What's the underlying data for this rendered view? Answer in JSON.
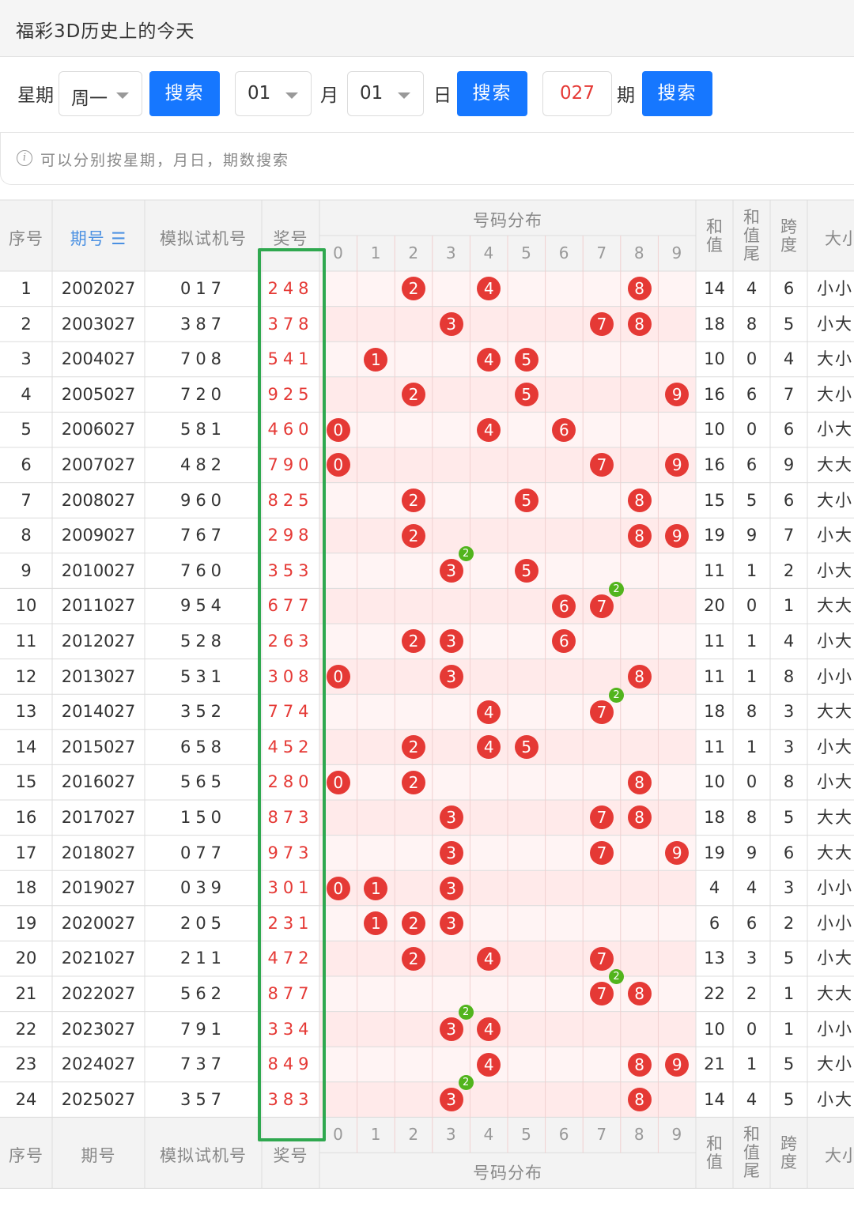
{
  "page": {
    "title": "福彩3D历史上的今天"
  },
  "search": {
    "week_label": "星期",
    "week_value": "周一",
    "month_value": "01",
    "month_label": "月",
    "day_value": "01",
    "day_label": "日",
    "issue_value": "027",
    "issue_label": "期",
    "search_btn": "搜索"
  },
  "tip": {
    "text": "可以分别按星期，月日，期数搜索"
  },
  "table": {
    "headers": {
      "seq": "序号",
      "issue": "期号",
      "sim": "模拟试机号",
      "win": "奖号",
      "dist": "号码分布",
      "sum": [
        "和",
        "值"
      ],
      "tail": [
        "和",
        "值",
        "尾"
      ],
      "span": [
        "跨",
        "度"
      ],
      "size": "大小"
    },
    "digits": [
      "0",
      "1",
      "2",
      "3",
      "4",
      "5",
      "6",
      "7",
      "8",
      "9"
    ],
    "rows": [
      {
        "seq": "1",
        "issue": "2002027",
        "sim": "017",
        "win": "248",
        "sum": "14",
        "tail": "4",
        "span": "6",
        "size": "小小"
      },
      {
        "seq": "2",
        "issue": "2003027",
        "sim": "387",
        "win": "378",
        "sum": "18",
        "tail": "8",
        "span": "5",
        "size": "小大"
      },
      {
        "seq": "3",
        "issue": "2004027",
        "sim": "708",
        "win": "541",
        "sum": "10",
        "tail": "0",
        "span": "4",
        "size": "大小"
      },
      {
        "seq": "4",
        "issue": "2005027",
        "sim": "720",
        "win": "925",
        "sum": "16",
        "tail": "6",
        "span": "7",
        "size": "大小"
      },
      {
        "seq": "5",
        "issue": "2006027",
        "sim": "581",
        "win": "460",
        "sum": "10",
        "tail": "0",
        "span": "6",
        "size": "小大"
      },
      {
        "seq": "6",
        "issue": "2007027",
        "sim": "482",
        "win": "790",
        "sum": "16",
        "tail": "6",
        "span": "9",
        "size": "大大"
      },
      {
        "seq": "7",
        "issue": "2008027",
        "sim": "960",
        "win": "825",
        "sum": "15",
        "tail": "5",
        "span": "6",
        "size": "大小"
      },
      {
        "seq": "8",
        "issue": "2009027",
        "sim": "767",
        "win": "298",
        "sum": "19",
        "tail": "9",
        "span": "7",
        "size": "小大"
      },
      {
        "seq": "9",
        "issue": "2010027",
        "sim": "760",
        "win": "353",
        "sum": "11",
        "tail": "1",
        "span": "2",
        "size": "小大"
      },
      {
        "seq": "10",
        "issue": "2011027",
        "sim": "954",
        "win": "677",
        "sum": "20",
        "tail": "0",
        "span": "1",
        "size": "大大"
      },
      {
        "seq": "11",
        "issue": "2012027",
        "sim": "528",
        "win": "263",
        "sum": "11",
        "tail": "1",
        "span": "4",
        "size": "小大"
      },
      {
        "seq": "12",
        "issue": "2013027",
        "sim": "531",
        "win": "308",
        "sum": "11",
        "tail": "1",
        "span": "8",
        "size": "小小"
      },
      {
        "seq": "13",
        "issue": "2014027",
        "sim": "352",
        "win": "774",
        "sum": "18",
        "tail": "8",
        "span": "3",
        "size": "大大"
      },
      {
        "seq": "14",
        "issue": "2015027",
        "sim": "658",
        "win": "452",
        "sum": "11",
        "tail": "1",
        "span": "3",
        "size": "小大"
      },
      {
        "seq": "15",
        "issue": "2016027",
        "sim": "565",
        "win": "280",
        "sum": "10",
        "tail": "0",
        "span": "8",
        "size": "小大"
      },
      {
        "seq": "16",
        "issue": "2017027",
        "sim": "150",
        "win": "873",
        "sum": "18",
        "tail": "8",
        "span": "5",
        "size": "大大"
      },
      {
        "seq": "17",
        "issue": "2018027",
        "sim": "077",
        "win": "973",
        "sum": "19",
        "tail": "9",
        "span": "6",
        "size": "大大"
      },
      {
        "seq": "18",
        "issue": "2019027",
        "sim": "039",
        "win": "301",
        "sum": "4",
        "tail": "4",
        "span": "3",
        "size": "小小"
      },
      {
        "seq": "19",
        "issue": "2020027",
        "sim": "205",
        "win": "231",
        "sum": "6",
        "tail": "6",
        "span": "2",
        "size": "小小"
      },
      {
        "seq": "20",
        "issue": "2021027",
        "sim": "211",
        "win": "472",
        "sum": "13",
        "tail": "3",
        "span": "5",
        "size": "小大"
      },
      {
        "seq": "21",
        "issue": "2022027",
        "sim": "562",
        "win": "877",
        "sum": "22",
        "tail": "2",
        "span": "1",
        "size": "大大"
      },
      {
        "seq": "22",
        "issue": "2023027",
        "sim": "791",
        "win": "334",
        "sum": "10",
        "tail": "0",
        "span": "1",
        "size": "小小"
      },
      {
        "seq": "23",
        "issue": "2024027",
        "sim": "737",
        "win": "849",
        "sum": "21",
        "tail": "1",
        "span": "5",
        "size": "大小"
      },
      {
        "seq": "24",
        "issue": "2025027",
        "sim": "357",
        "win": "383",
        "sum": "14",
        "tail": "4",
        "span": "5",
        "size": "小大"
      }
    ]
  },
  "colors": {
    "primary": "#1677ff",
    "win": "#e53935",
    "repeat": "#52b41d",
    "highlight": "#2fa84f"
  },
  "icons": {
    "sort": "sort-desc-icon",
    "info": "info-icon",
    "caret": "caret-down-icon"
  }
}
